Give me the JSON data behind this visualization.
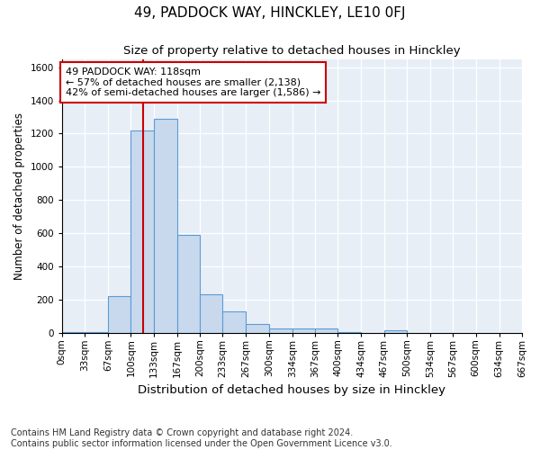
{
  "title": "49, PADDOCK WAY, HINCKLEY, LE10 0FJ",
  "subtitle": "Size of property relative to detached houses in Hinckley",
  "xlabel": "Distribution of detached houses by size in Hinckley",
  "ylabel": "Number of detached properties",
  "footnote": "Contains HM Land Registry data © Crown copyright and database right 2024.\nContains public sector information licensed under the Open Government Licence v3.0.",
  "bar_color": "#c8d9ed",
  "bar_edge_color": "#5b9bd5",
  "background_color": "#e8eef6",
  "vline_x": 118,
  "vline_color": "#cc0000",
  "annotation_text": "49 PADDOCK WAY: 118sqm\n← 57% of detached houses are smaller (2,138)\n42% of semi-detached houses are larger (1,586) →",
  "annotation_box_color": "white",
  "annotation_box_edge": "#cc0000",
  "bin_edges": [
    0,
    33,
    67,
    100,
    133,
    167,
    200,
    233,
    267,
    300,
    334,
    367,
    400,
    434,
    467,
    500,
    534,
    567,
    600,
    634,
    667
  ],
  "bar_heights": [
    5,
    5,
    220,
    1220,
    1290,
    590,
    230,
    130,
    50,
    25,
    25,
    25,
    5,
    0,
    15,
    0,
    0,
    0,
    0,
    0
  ],
  "ylim": [
    0,
    1650
  ],
  "yticks": [
    0,
    200,
    400,
    600,
    800,
    1000,
    1200,
    1400,
    1600
  ],
  "title_fontsize": 11,
  "subtitle_fontsize": 9.5,
  "ylabel_fontsize": 8.5,
  "xlabel_fontsize": 9.5,
  "footnote_fontsize": 7,
  "tick_fontsize": 7.5,
  "annot_fontsize": 8
}
